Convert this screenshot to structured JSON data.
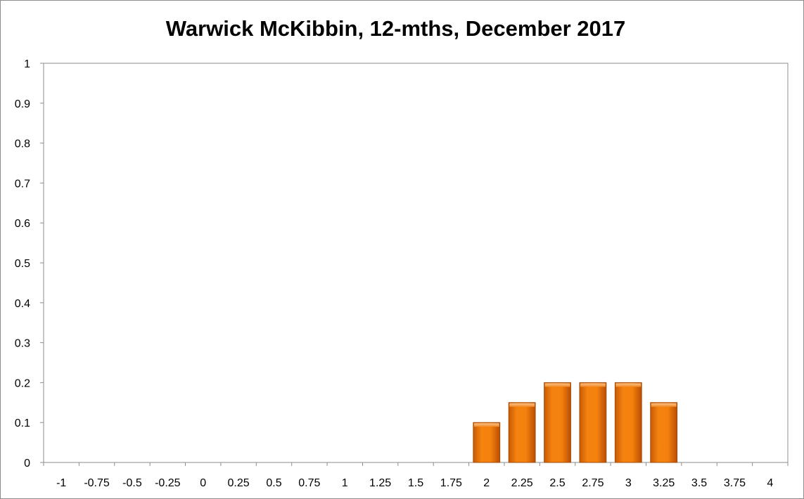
{
  "chart_data": {
    "type": "bar",
    "title": "Warwick McKibbin, 12-mths, December 2017",
    "xlabel": "",
    "ylabel": "",
    "categories": [
      "-1",
      "-0.75",
      "-0.5",
      "-0.25",
      "0",
      "0.25",
      "0.5",
      "0.75",
      "1",
      "1.25",
      "1.5",
      "1.75",
      "2",
      "2.25",
      "2.5",
      "2.75",
      "3",
      "3.25",
      "3.5",
      "3.75",
      "4"
    ],
    "values": [
      0,
      0,
      0,
      0,
      0,
      0,
      0,
      0,
      0,
      0,
      0,
      0,
      0.1,
      0.15,
      0.2,
      0.2,
      0.2,
      0.15,
      0,
      0,
      0
    ],
    "ylim": [
      0,
      1
    ],
    "yticks": [
      "0",
      "0.1",
      "0.2",
      "0.3",
      "0.4",
      "0.5",
      "0.6",
      "0.7",
      "0.8",
      "0.9",
      "1"
    ],
    "grid": false,
    "legend": "none",
    "bar_color": "#f07a12",
    "bar_edge_color": "#a24a05"
  }
}
